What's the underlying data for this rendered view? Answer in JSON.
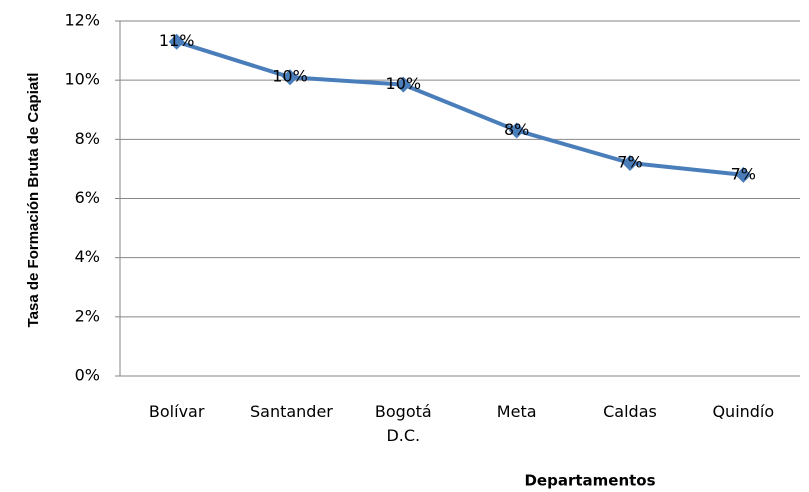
{
  "chart_data": {
    "type": "line",
    "x_label": "Departamentos",
    "y_label": "Tasa de Formación Bruta de Capiatl",
    "categories": [
      "Bolívar",
      "Santander",
      "Bogotá D.C.",
      "Meta",
      "Caldas",
      "Quindío"
    ],
    "values": [
      11.3,
      10.1,
      9.85,
      8.3,
      7.2,
      6.8
    ],
    "value_labels": [
      "11%",
      "10%",
      "10%",
      "8%",
      "7%",
      "7%"
    ],
    "color": "#4a7ebb",
    "ylim": [
      0,
      12
    ],
    "yticks": [
      {
        "value": 0,
        "label": "0%"
      },
      {
        "value": 2,
        "label": "2%"
      },
      {
        "value": 4,
        "label": "4%"
      },
      {
        "value": 6,
        "label": "6%"
      },
      {
        "value": 8,
        "label": "8%"
      },
      {
        "value": 10,
        "label": "10%"
      },
      {
        "value": 12,
        "label": "12%"
      }
    ],
    "grid": true
  }
}
